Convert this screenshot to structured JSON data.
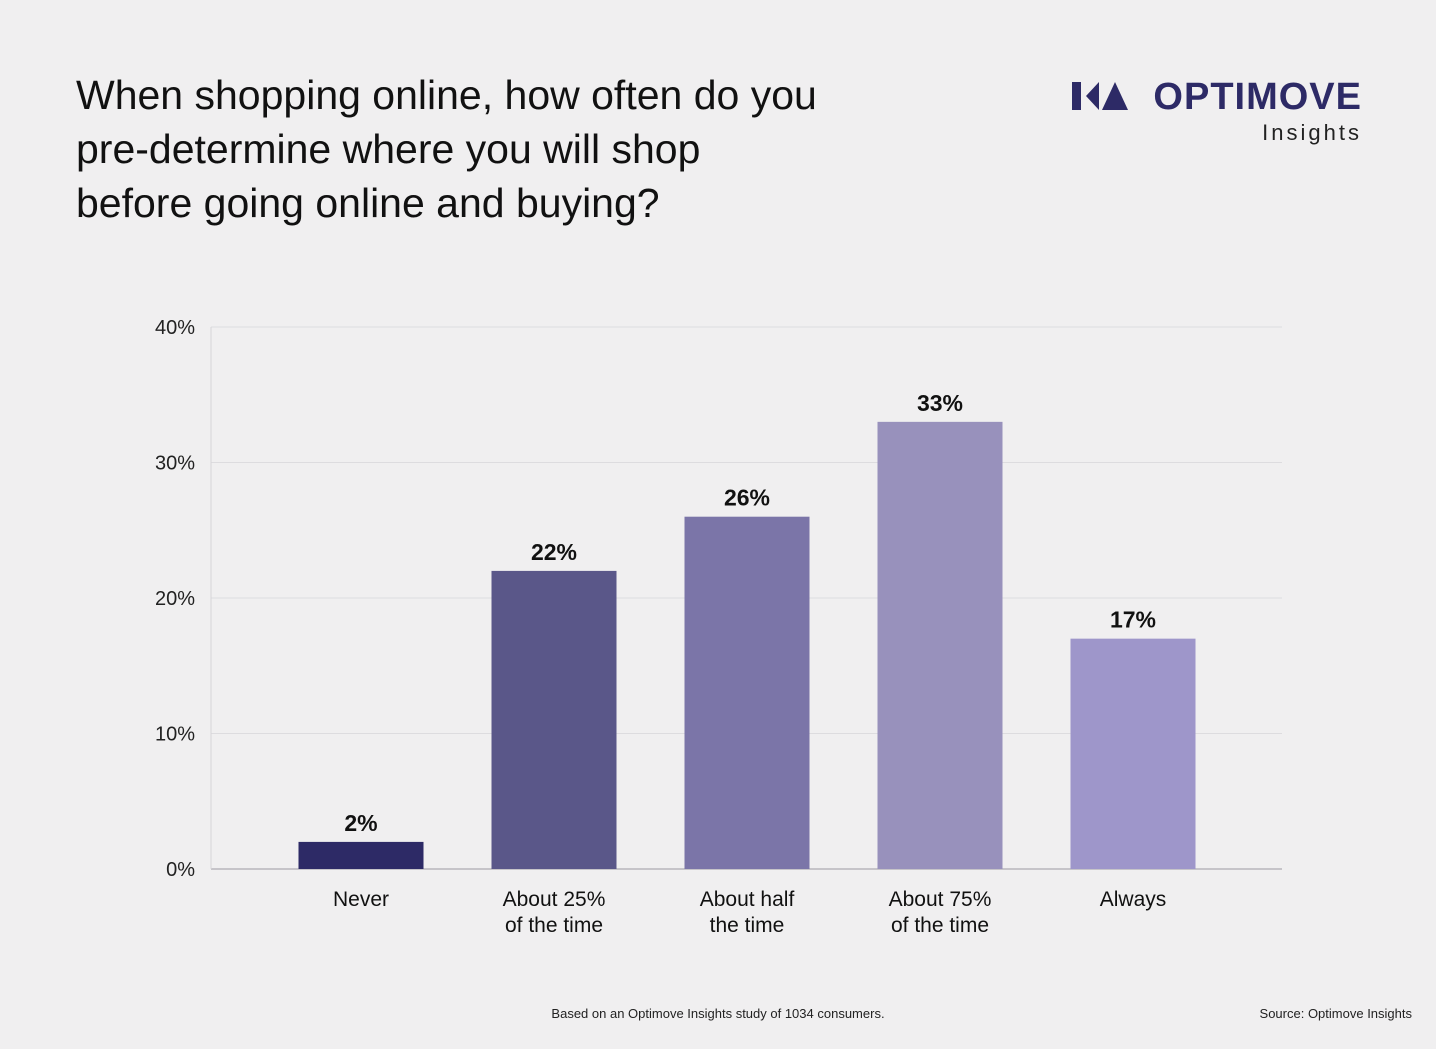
{
  "header": {
    "title_lines": [
      "When shopping online, how often do you",
      "pre-determine where you will shop",
      "before going online and buying?"
    ]
  },
  "brand": {
    "name": "OPTIMOVE",
    "sub": "Insights",
    "color": "#2d2a66"
  },
  "chart_data": {
    "type": "bar",
    "title": "When shopping online, how often do you pre-determine where you will shop before going online and buying?",
    "categories": [
      [
        "Never"
      ],
      [
        "About 25%",
        "of the time"
      ],
      [
        "About half",
        "the time"
      ],
      [
        "About 75%",
        "of the time"
      ],
      [
        "Always"
      ]
    ],
    "values": [
      2,
      22,
      26,
      33,
      17
    ],
    "value_labels": [
      "2%",
      "22%",
      "26%",
      "33%",
      "17%"
    ],
    "colors": [
      "#2d2a66",
      "#5a5789",
      "#7b75a8",
      "#9891bc",
      "#9e96ca"
    ],
    "ylim": [
      0,
      40
    ],
    "yticks": [
      0,
      10,
      20,
      30,
      40
    ],
    "ytick_labels": [
      "0%",
      "10%",
      "20%",
      "30%",
      "40%"
    ],
    "grid": true,
    "xlabel": "",
    "ylabel": ""
  },
  "footer": {
    "note": "Based on an Optimove Insights study of 1034 consumers.",
    "source": "Source: Optimove Insights"
  }
}
